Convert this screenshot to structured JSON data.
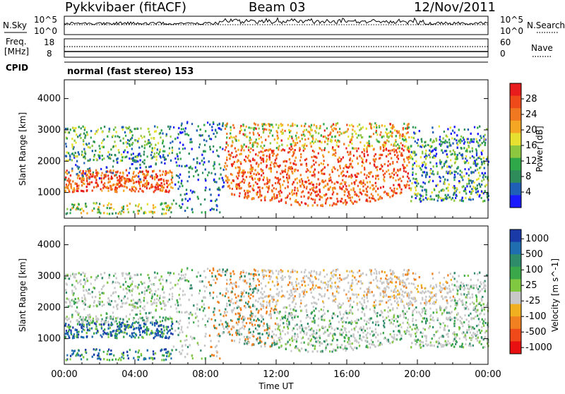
{
  "header": {
    "station": "Pykkvibaer (fitACF)",
    "beam": "Beam 03",
    "date": "12/Nov/2011"
  },
  "top_panels": {
    "nsky_label": "N.Sky",
    "nsky_ticks": [
      "10^5",
      "10^0"
    ],
    "nsearch_label": "N.Search",
    "nsearch_ticks": [
      "10^5",
      "10^0"
    ],
    "freq_label": "Freq.",
    "freq_unit": "[MHz]",
    "freq_ticks": [
      "18",
      "8"
    ],
    "nave_label": "Nave",
    "nave_ticks": [
      "60",
      "0"
    ],
    "cpid_label": "CPID",
    "cpid_text": "normal (fast stereo) 153"
  },
  "colors": {
    "power_scale": [
      "#1a1aff",
      "#1f5fb8",
      "#2e8c5a",
      "#2fa84a",
      "#8dc63f",
      "#e8e030",
      "#f5a623",
      "#f07820",
      "#ee4a1a",
      "#e81c1c"
    ],
    "velocity_scale": [
      "#1a3aa8",
      "#1f6fb0",
      "#2f8c6a",
      "#3aa84a",
      "#80c840",
      "#c8c8c8",
      "#f0b020",
      "#f08020",
      "#f04a1a",
      "#e81010"
    ],
    "background": "#ffffff"
  },
  "chart_data": [
    {
      "type": "heatmap",
      "title": "",
      "xlabel": "Time UT",
      "ylabel": "Slant Range [km]",
      "x_ticks": [
        "00:00",
        "04:00",
        "08:00",
        "12:00",
        "16:00",
        "20:00",
        "00:00"
      ],
      "y_ticks": [
        "1000",
        "2000",
        "3000",
        "4000"
      ],
      "xlim_hours": [
        0,
        24
      ],
      "ylim_km": [
        180,
        4600
      ],
      "colorbar_label": "Power [dB]",
      "colorbar_ticks": [
        "4",
        "8",
        "12",
        "16",
        "20",
        "24",
        "28"
      ],
      "colorbar_range": [
        0,
        30
      ]
    },
    {
      "type": "heatmap",
      "title": "",
      "xlabel": "Time UT",
      "ylabel": "Slant Range [km]",
      "x_ticks": [
        "00:00",
        "04:00",
        "08:00",
        "12:00",
        "16:00",
        "20:00",
        "00:00"
      ],
      "y_ticks": [
        "1000",
        "2000",
        "3000",
        "4000"
      ],
      "xlim_hours": [
        0,
        24
      ],
      "ylim_km": [
        180,
        4600
      ],
      "colorbar_label": "Velocity [m s^-1]",
      "colorbar_ticks": [
        "1000",
        "500",
        "100",
        "25",
        "-25",
        "-100",
        "-500",
        "-1000"
      ]
    }
  ]
}
